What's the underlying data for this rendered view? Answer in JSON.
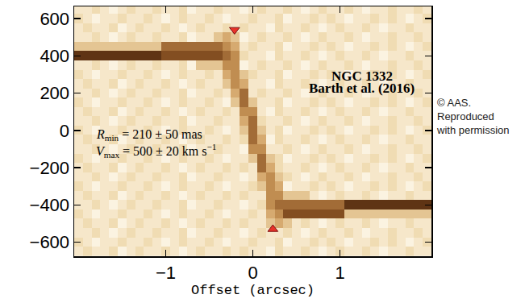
{
  "chart_data": {
    "type": "heatmap",
    "x_label": "Offset (arcsec)",
    "xlim": [
      -2.05,
      2.05
    ],
    "ylim": [
      -675,
      665
    ],
    "xticks": [
      {
        "value": -1,
        "label": "−1"
      },
      0,
      1
    ],
    "yticks": [
      {
        "value": -600,
        "label": "−600"
      },
      {
        "value": -400,
        "label": "−400"
      },
      {
        "value": -200,
        "label": "−200"
      },
      0,
      200,
      400,
      600
    ],
    "zlim": [
      0,
      9
    ],
    "colors": [
      "#fbf3e1",
      "#efd9ad",
      "#cf9d5e",
      "#8c5424",
      "#3b1b07"
    ],
    "x": [
      -2.0,
      -1.9,
      -1.8,
      -1.7,
      -1.6,
      -1.5,
      -1.4,
      -1.3,
      -1.2,
      -1.1,
      -1.0,
      -0.9,
      -0.8,
      -0.7,
      -0.6,
      -0.5,
      -0.4,
      -0.3,
      -0.2,
      -0.1,
      0.0,
      0.1,
      0.2,
      0.3,
      0.4,
      0.5,
      0.6,
      0.7,
      0.8,
      0.9,
      1.0,
      1.1,
      1.2,
      1.3,
      1.4,
      1.5,
      1.6,
      1.7,
      1.8,
      1.9,
      2.0
    ],
    "y": [
      -650,
      -600,
      -550,
      -500,
      -450,
      -400,
      -350,
      -300,
      -250,
      -200,
      -150,
      -100,
      -50,
      0,
      50,
      100,
      150,
      200,
      250,
      300,
      350,
      400,
      450,
      500,
      550,
      600,
      650
    ],
    "cells": [
      [
        1,
        2,
        1,
        1,
        2,
        0,
        1,
        2,
        1,
        1,
        2,
        1,
        0,
        1,
        2,
        1,
        1,
        2,
        1,
        2,
        1,
        1,
        0,
        2,
        1,
        1,
        2,
        1,
        0,
        1,
        2,
        1,
        1,
        2,
        1,
        0,
        1,
        1,
        2,
        1,
        1
      ],
      [
        2,
        1,
        0,
        1,
        1,
        2,
        1,
        1,
        2,
        1,
        0,
        1,
        2,
        1,
        1,
        2,
        1,
        0,
        1,
        1,
        2,
        1,
        1,
        2,
        0,
        1,
        1,
        2,
        1,
        2,
        1,
        0,
        1,
        1,
        2,
        1,
        2,
        1,
        0,
        1,
        2
      ],
      [
        1,
        1,
        2,
        1,
        0,
        1,
        2,
        1,
        1,
        2,
        1,
        1,
        2,
        0,
        1,
        1,
        2,
        1,
        1,
        0,
        1,
        2,
        1,
        1,
        2,
        1,
        0,
        1,
        2,
        1,
        1,
        2,
        1,
        0,
        1,
        1,
        2,
        1,
        1,
        2,
        1
      ],
      [
        1,
        2,
        1,
        1,
        2,
        0,
        1,
        2,
        1,
        1,
        2,
        1,
        0,
        1,
        2,
        1,
        1,
        2,
        1,
        2,
        1,
        1,
        3,
        4,
        3,
        1,
        2,
        1,
        0,
        1,
        2,
        1,
        1,
        2,
        1,
        0,
        1,
        1,
        2,
        1,
        1
      ],
      [
        2,
        1,
        0,
        1,
        1,
        2,
        1,
        1,
        2,
        1,
        0,
        1,
        2,
        1,
        1,
        2,
        1,
        0,
        1,
        1,
        2,
        1,
        4,
        5,
        7,
        7,
        7,
        7,
        7,
        7,
        7,
        3,
        3,
        3,
        3,
        3,
        3,
        3,
        3,
        3,
        3
      ],
      [
        1,
        1,
        2,
        1,
        0,
        1,
        2,
        1,
        1,
        2,
        1,
        1,
        2,
        0,
        1,
        1,
        2,
        1,
        1,
        0,
        1,
        2,
        5,
        6,
        6,
        6,
        6,
        6,
        6,
        6,
        6,
        8,
        8,
        8,
        8,
        8,
        8,
        8,
        8,
        8,
        8
      ],
      [
        1,
        2,
        1,
        1,
        2,
        0,
        1,
        2,
        1,
        1,
        2,
        1,
        0,
        1,
        2,
        1,
        1,
        2,
        1,
        2,
        1,
        1,
        5,
        5,
        3,
        3,
        3,
        1,
        0,
        1,
        2,
        1,
        1,
        2,
        1,
        0,
        1,
        1,
        2,
        1,
        1
      ],
      [
        2,
        1,
        0,
        1,
        1,
        2,
        1,
        1,
        2,
        1,
        0,
        1,
        2,
        1,
        1,
        2,
        1,
        0,
        1,
        1,
        2,
        3,
        5,
        4,
        0,
        1,
        1,
        2,
        1,
        2,
        1,
        0,
        1,
        1,
        2,
        1,
        2,
        1,
        0,
        1,
        2
      ],
      [
        1,
        1,
        2,
        1,
        0,
        1,
        2,
        1,
        1,
        2,
        1,
        1,
        2,
        0,
        1,
        1,
        2,
        1,
        1,
        0,
        1,
        4,
        5,
        3,
        2,
        1,
        0,
        1,
        2,
        1,
        1,
        2,
        1,
        0,
        1,
        1,
        2,
        1,
        1,
        2,
        1
      ],
      [
        1,
        2,
        1,
        1,
        2,
        0,
        1,
        2,
        1,
        1,
        2,
        1,
        0,
        1,
        2,
        1,
        1,
        2,
        1,
        2,
        1,
        6,
        4,
        2,
        1,
        1,
        2,
        1,
        0,
        1,
        2,
        1,
        1,
        2,
        1,
        0,
        1,
        1,
        2,
        1,
        1
      ],
      [
        2,
        1,
        0,
        1,
        1,
        2,
        1,
        1,
        2,
        1,
        0,
        1,
        2,
        1,
        1,
        2,
        1,
        0,
        1,
        1,
        3,
        6,
        3,
        2,
        0,
        1,
        1,
        2,
        1,
        2,
        1,
        0,
        1,
        1,
        2,
        1,
        2,
        1,
        0,
        1,
        2
      ],
      [
        1,
        1,
        2,
        1,
        0,
        1,
        2,
        1,
        1,
        2,
        1,
        1,
        2,
        0,
        1,
        1,
        2,
        1,
        1,
        0,
        5,
        5,
        1,
        1,
        2,
        1,
        0,
        1,
        2,
        1,
        1,
        2,
        1,
        0,
        1,
        1,
        2,
        1,
        1,
        2,
        1
      ],
      [
        1,
        2,
        1,
        1,
        2,
        0,
        1,
        2,
        1,
        1,
        2,
        1,
        0,
        1,
        2,
        1,
        1,
        2,
        1,
        2,
        6,
        4,
        0,
        2,
        1,
        1,
        2,
        1,
        0,
        1,
        2,
        1,
        1,
        2,
        1,
        0,
        1,
        1,
        2,
        1,
        1
      ],
      [
        2,
        1,
        0,
        1,
        1,
        2,
        1,
        1,
        2,
        1,
        0,
        1,
        2,
        1,
        1,
        2,
        1,
        0,
        1,
        3,
        6,
        3,
        1,
        2,
        0,
        1,
        1,
        2,
        1,
        2,
        1,
        0,
        1,
        1,
        2,
        1,
        2,
        1,
        0,
        1,
        2
      ],
      [
        1,
        1,
        2,
        1,
        0,
        1,
        2,
        1,
        1,
        2,
        1,
        1,
        2,
        0,
        1,
        1,
        2,
        1,
        1,
        4,
        6,
        2,
        1,
        1,
        2,
        1,
        0,
        1,
        2,
        1,
        1,
        2,
        1,
        0,
        1,
        1,
        2,
        1,
        1,
        2,
        1
      ],
      [
        1,
        2,
        1,
        1,
        2,
        0,
        1,
        2,
        1,
        1,
        2,
        1,
        0,
        1,
        2,
        1,
        1,
        2,
        1,
        5,
        5,
        1,
        0,
        2,
        1,
        1,
        2,
        1,
        0,
        1,
        2,
        1,
        1,
        2,
        1,
        0,
        1,
        1,
        2,
        1,
        1
      ],
      [
        2,
        1,
        0,
        1,
        1,
        2,
        1,
        1,
        2,
        1,
        0,
        1,
        2,
        1,
        1,
        2,
        1,
        0,
        3,
        6,
        3,
        1,
        1,
        2,
        0,
        1,
        1,
        2,
        1,
        2,
        1,
        0,
        1,
        1,
        2,
        1,
        2,
        1,
        0,
        1,
        2
      ],
      [
        1,
        1,
        2,
        1,
        0,
        1,
        2,
        1,
        1,
        2,
        1,
        1,
        2,
        0,
        1,
        1,
        2,
        1,
        4,
        6,
        1,
        2,
        1,
        1,
        2,
        1,
        0,
        1,
        2,
        1,
        1,
        2,
        1,
        0,
        1,
        1,
        2,
        1,
        1,
        2,
        1
      ],
      [
        1,
        2,
        1,
        1,
        2,
        0,
        1,
        2,
        1,
        1,
        2,
        1,
        0,
        1,
        2,
        1,
        1,
        3,
        5,
        4,
        1,
        1,
        0,
        2,
        1,
        1,
        2,
        1,
        0,
        1,
        2,
        1,
        1,
        2,
        1,
        0,
        1,
        1,
        2,
        1,
        1
      ],
      [
        2,
        1,
        0,
        1,
        1,
        2,
        1,
        1,
        2,
        1,
        0,
        1,
        2,
        1,
        1,
        2,
        1,
        4,
        5,
        3,
        2,
        1,
        1,
        2,
        0,
        1,
        1,
        2,
        1,
        2,
        1,
        0,
        1,
        1,
        2,
        1,
        2,
        1,
        0,
        1,
        2
      ],
      [
        1,
        1,
        2,
        1,
        0,
        1,
        2,
        1,
        1,
        2,
        1,
        1,
        2,
        0,
        3,
        3,
        3,
        5,
        5,
        0,
        1,
        2,
        1,
        1,
        2,
        1,
        0,
        1,
        2,
        1,
        1,
        2,
        1,
        0,
        1,
        1,
        2,
        1,
        1,
        2,
        1
      ],
      [
        8,
        8,
        8,
        8,
        8,
        8,
        8,
        8,
        8,
        8,
        7,
        7,
        7,
        7,
        7,
        7,
        7,
        6,
        5,
        2,
        1,
        1,
        0,
        2,
        1,
        1,
        2,
        1,
        0,
        1,
        2,
        1,
        1,
        2,
        1,
        0,
        1,
        1,
        2,
        1,
        1
      ],
      [
        3,
        3,
        3,
        3,
        3,
        3,
        3,
        3,
        3,
        3,
        6,
        6,
        6,
        6,
        6,
        6,
        6,
        5,
        4,
        1,
        2,
        1,
        1,
        2,
        0,
        1,
        1,
        2,
        1,
        2,
        1,
        0,
        1,
        1,
        2,
        1,
        2,
        1,
        0,
        1,
        2
      ],
      [
        1,
        1,
        2,
        1,
        0,
        1,
        2,
        1,
        1,
        2,
        1,
        1,
        2,
        0,
        1,
        1,
        3,
        4,
        3,
        0,
        1,
        2,
        1,
        1,
        2,
        1,
        0,
        1,
        2,
        1,
        1,
        2,
        1,
        0,
        1,
        1,
        2,
        1,
        1,
        2,
        1
      ],
      [
        1,
        2,
        1,
        1,
        2,
        0,
        1,
        2,
        1,
        1,
        2,
        1,
        0,
        1,
        2,
        1,
        1,
        2,
        1,
        2,
        1,
        1,
        0,
        2,
        1,
        1,
        2,
        1,
        0,
        1,
        2,
        1,
        1,
        2,
        1,
        0,
        1,
        1,
        2,
        1,
        1
      ],
      [
        2,
        1,
        0,
        1,
        1,
        2,
        1,
        1,
        2,
        1,
        0,
        1,
        2,
        1,
        1,
        2,
        1,
        0,
        1,
        1,
        2,
        1,
        1,
        2,
        0,
        1,
        1,
        2,
        1,
        2,
        1,
        0,
        1,
        1,
        2,
        1,
        2,
        1,
        0,
        1,
        2
      ],
      [
        1,
        1,
        2,
        1,
        0,
        1,
        2,
        1,
        1,
        2,
        1,
        1,
        2,
        0,
        1,
        1,
        2,
        1,
        1,
        0,
        1,
        2,
        1,
        1,
        2,
        1,
        0,
        1,
        2,
        1,
        1,
        2,
        1,
        0,
        1,
        1,
        2,
        1,
        1,
        2,
        1
      ]
    ],
    "points": [
      {
        "x": -0.21,
        "y": 540,
        "marker": "triangle-down",
        "color": "#e8332a"
      },
      {
        "x": 0.23,
        "y": -530,
        "marker": "triangle-up",
        "color": "#e8332a"
      }
    ],
    "labels": [
      {
        "text": "NGC 1332",
        "x": 1.25,
        "y": 290
      },
      {
        "text": "Barth et al. (2016)",
        "x": 1.25,
        "y": 228
      }
    ],
    "fit_labels": [
      {
        "symbol": "R",
        "subscript": "min",
        "text": " = 210 ± 50 mas",
        "x": -1.82,
        "y": -25
      },
      {
        "symbol": "V",
        "subscript": "max",
        "text": " = 500 ± 20 km s",
        "superscript": "−1",
        "x": -1.82,
        "y": -110
      }
    ],
    "credit": [
      "© AAS.",
      "Reproduced",
      "with permission"
    ]
  }
}
